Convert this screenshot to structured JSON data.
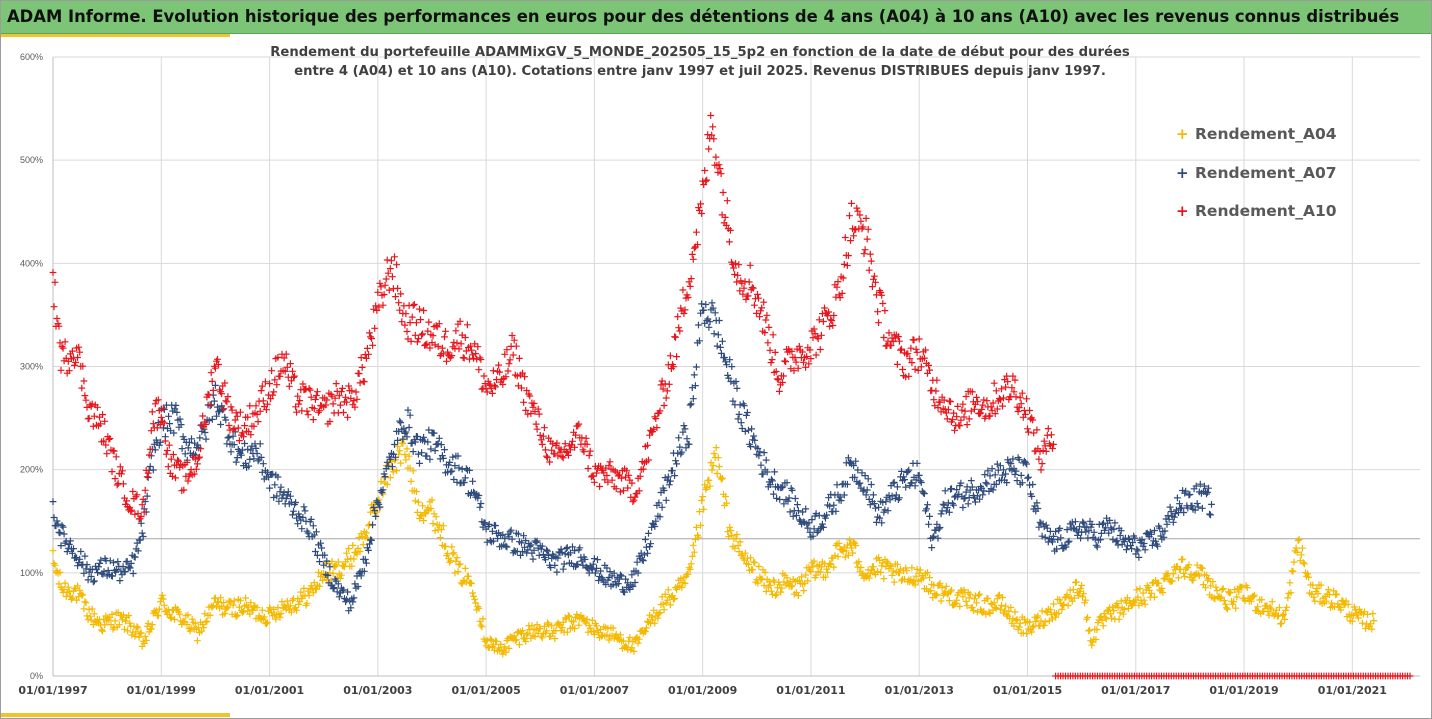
{
  "banner": {
    "title": "ADAM Informe. Evolution historique des performances en euros pour des détentions de 4 ans (A04) à 10 ans (A10) avec les revenus connus distribués"
  },
  "chart_data": {
    "type": "scatter",
    "title": "Rendement du portefeuille ADAMMixGV_5_MONDE_202505_15_5p2 en fonction de la date de début pour des durées",
    "subtitle": "entre 4 (A04) et 10 ans (A10). Cotations entre janv 1997 et juil 2025. Revenus DISTRIBUES depuis janv 1997.",
    "xlabel": "",
    "ylabel": "",
    "x_axis": "date of start of holding period",
    "xlim": [
      "1997-01-01",
      "2022-04-01"
    ],
    "ylim": [
      0,
      6
    ],
    "y_ticks": [
      "0%",
      "100%",
      "200%",
      "300%",
      "400%",
      "500%",
      "600%"
    ],
    "x_ticks": [
      "01/01/1997",
      "01/01/1999",
      "01/01/2001",
      "01/01/2003",
      "01/01/2005",
      "01/01/2007",
      "01/01/2009",
      "01/01/2011",
      "01/01/2013",
      "01/01/2015",
      "01/01/2017",
      "01/01/2019",
      "01/01/2021"
    ],
    "grid": true,
    "legend_position": "right",
    "colors": {
      "A04": "#f5b900",
      "A07": "#2f4b7c",
      "A10": "#e8161c",
      "grid": "#d9d9d9",
      "refline": "#a6a6a6"
    },
    "reference_line": 1.33,
    "series": [
      {
        "name": "Rendement_A04",
        "color": "#f5b900",
        "end": "2021-06-01",
        "points": [
          [
            "1997-01-01",
            1.12
          ],
          [
            "1997-03-01",
            0.85
          ],
          [
            "1997-06-01",
            0.82
          ],
          [
            "1997-09-01",
            0.6
          ],
          [
            "1997-12-01",
            0.5
          ],
          [
            "1998-03-01",
            0.55
          ],
          [
            "1998-06-01",
            0.5
          ],
          [
            "1998-09-01",
            0.32
          ],
          [
            "1998-11-01",
            0.52
          ],
          [
            "1999-01-01",
            0.72
          ],
          [
            "1999-03-01",
            0.62
          ],
          [
            "1999-06-01",
            0.55
          ],
          [
            "1999-09-01",
            0.42
          ],
          [
            "2000-01-01",
            0.7
          ],
          [
            "2000-04-01",
            0.65
          ],
          [
            "2000-07-01",
            0.68
          ],
          [
            "2000-10-01",
            0.62
          ],
          [
            "2001-01-01",
            0.58
          ],
          [
            "2001-04-01",
            0.68
          ],
          [
            "2001-07-01",
            0.72
          ],
          [
            "2001-10-01",
            0.8
          ],
          [
            "2002-01-01",
            1.0
          ],
          [
            "2002-04-01",
            1.02
          ],
          [
            "2002-07-01",
            1.15
          ],
          [
            "2002-10-01",
            1.35
          ],
          [
            "2003-01-01",
            1.7
          ],
          [
            "2003-04-01",
            2.05
          ],
          [
            "2003-07-01",
            2.2
          ],
          [
            "2003-10-01",
            1.65
          ],
          [
            "2004-01-01",
            1.6
          ],
          [
            "2004-04-01",
            1.3
          ],
          [
            "2004-07-01",
            1.0
          ],
          [
            "2004-10-01",
            0.9
          ],
          [
            "2005-01-01",
            0.35
          ],
          [
            "2005-04-01",
            0.25
          ],
          [
            "2005-07-01",
            0.35
          ],
          [
            "2005-10-01",
            0.42
          ],
          [
            "2006-01-01",
            0.45
          ],
          [
            "2006-04-01",
            0.42
          ],
          [
            "2006-07-01",
            0.5
          ],
          [
            "2006-10-01",
            0.55
          ],
          [
            "2007-01-01",
            0.45
          ],
          [
            "2007-04-01",
            0.42
          ],
          [
            "2007-07-01",
            0.35
          ],
          [
            "2007-10-01",
            0.28
          ],
          [
            "2008-01-01",
            0.5
          ],
          [
            "2008-04-01",
            0.7
          ],
          [
            "2008-07-01",
            0.8
          ],
          [
            "2008-10-01",
            0.95
          ],
          [
            "2009-01-01",
            1.65
          ],
          [
            "2009-04-01",
            2.15
          ],
          [
            "2009-07-01",
            1.4
          ],
          [
            "2009-10-01",
            1.15
          ],
          [
            "2010-01-01",
            1.0
          ],
          [
            "2010-04-01",
            0.85
          ],
          [
            "2010-07-01",
            0.9
          ],
          [
            "2010-10-01",
            0.85
          ],
          [
            "2011-01-01",
            1.0
          ],
          [
            "2011-04-01",
            1.05
          ],
          [
            "2011-07-01",
            1.2
          ],
          [
            "2011-10-01",
            1.25
          ],
          [
            "2012-01-01",
            1.0
          ],
          [
            "2012-04-01",
            1.05
          ],
          [
            "2012-07-01",
            1.0
          ],
          [
            "2012-10-01",
            0.95
          ],
          [
            "2013-01-01",
            1.0
          ],
          [
            "2013-04-01",
            0.85
          ],
          [
            "2013-07-01",
            0.8
          ],
          [
            "2013-10-01",
            0.75
          ],
          [
            "2014-01-01",
            0.72
          ],
          [
            "2014-04-01",
            0.68
          ],
          [
            "2014-07-01",
            0.7
          ],
          [
            "2014-10-01",
            0.55
          ],
          [
            "2015-01-01",
            0.45
          ],
          [
            "2015-04-01",
            0.55
          ],
          [
            "2015-07-01",
            0.65
          ],
          [
            "2015-10-01",
            0.75
          ],
          [
            "2016-01-01",
            0.9
          ],
          [
            "2016-03-01",
            0.35
          ],
          [
            "2016-06-01",
            0.55
          ],
          [
            "2016-10-01",
            0.65
          ],
          [
            "2017-01-01",
            0.75
          ],
          [
            "2017-04-01",
            0.8
          ],
          [
            "2017-07-01",
            0.9
          ],
          [
            "2017-10-01",
            1.05
          ],
          [
            "2018-01-01",
            1.05
          ],
          [
            "2018-04-01",
            0.95
          ],
          [
            "2018-07-01",
            0.8
          ],
          [
            "2018-10-01",
            0.72
          ],
          [
            "2019-01-01",
            0.8
          ],
          [
            "2019-04-01",
            0.7
          ],
          [
            "2019-07-01",
            0.65
          ],
          [
            "2019-10-01",
            0.55
          ],
          [
            "2020-01-01",
            1.3
          ],
          [
            "2020-04-01",
            0.8
          ],
          [
            "2020-07-01",
            0.78
          ],
          [
            "2020-10-01",
            0.72
          ],
          [
            "2021-01-01",
            0.6
          ],
          [
            "2021-03-01",
            0.55
          ],
          [
            "2021-06-01",
            0.52
          ]
        ]
      },
      {
        "name": "Rendement_A07",
        "color": "#2f4b7c",
        "end": "2018-06-01",
        "points": [
          [
            "1997-01-01",
            1.62
          ],
          [
            "1997-03-01",
            1.35
          ],
          [
            "1997-06-01",
            1.2
          ],
          [
            "1997-09-01",
            1.0
          ],
          [
            "1998-01-01",
            1.05
          ],
          [
            "1998-05-01",
            1.0
          ],
          [
            "1998-07-01",
            1.1
          ],
          [
            "1998-09-01",
            1.45
          ],
          [
            "1998-11-01",
            2.1
          ],
          [
            "1999-01-01",
            2.45
          ],
          [
            "1999-04-01",
            2.5
          ],
          [
            "1999-07-01",
            2.2
          ],
          [
            "1999-10-01",
            2.3
          ],
          [
            "2000-01-01",
            2.7
          ],
          [
            "2000-04-01",
            2.35
          ],
          [
            "2000-07-01",
            2.1
          ],
          [
            "2000-10-01",
            2.2
          ],
          [
            "2001-01-01",
            1.9
          ],
          [
            "2001-04-01",
            1.75
          ],
          [
            "2001-07-01",
            1.6
          ],
          [
            "2001-10-01",
            1.45
          ],
          [
            "2002-01-01",
            1.1
          ],
          [
            "2002-04-01",
            0.85
          ],
          [
            "2002-07-01",
            0.7
          ],
          [
            "2002-10-01",
            1.1
          ],
          [
            "2003-01-01",
            1.7
          ],
          [
            "2003-04-01",
            2.1
          ],
          [
            "2003-07-01",
            2.5
          ],
          [
            "2003-10-01",
            2.2
          ],
          [
            "2004-01-01",
            2.25
          ],
          [
            "2004-04-01",
            2.1
          ],
          [
            "2004-07-01",
            2.0
          ],
          [
            "2004-10-01",
            1.85
          ],
          [
            "2005-01-01",
            1.4
          ],
          [
            "2005-04-01",
            1.35
          ],
          [
            "2005-07-01",
            1.3
          ],
          [
            "2005-10-01",
            1.25
          ],
          [
            "2006-01-01",
            1.2
          ],
          [
            "2006-04-01",
            1.1
          ],
          [
            "2006-07-01",
            1.15
          ],
          [
            "2006-10-01",
            1.18
          ],
          [
            "2007-01-01",
            1.05
          ],
          [
            "2007-04-01",
            0.95
          ],
          [
            "2007-07-01",
            0.9
          ],
          [
            "2007-10-01",
            0.95
          ],
          [
            "2008-01-01",
            1.3
          ],
          [
            "2008-04-01",
            1.7
          ],
          [
            "2008-07-01",
            2.1
          ],
          [
            "2008-10-01",
            2.4
          ],
          [
            "2009-01-01",
            3.6
          ],
          [
            "2009-04-01",
            3.4
          ],
          [
            "2009-07-01",
            2.9
          ],
          [
            "2009-10-01",
            2.5
          ],
          [
            "2010-01-01",
            2.2
          ],
          [
            "2010-04-01",
            1.9
          ],
          [
            "2010-07-01",
            1.8
          ],
          [
            "2010-10-01",
            1.6
          ],
          [
            "2011-01-01",
            1.45
          ],
          [
            "2011-04-01",
            1.55
          ],
          [
            "2011-07-01",
            1.75
          ],
          [
            "2011-10-01",
            2.05
          ],
          [
            "2012-01-01",
            1.9
          ],
          [
            "2012-04-01",
            1.55
          ],
          [
            "2012-07-01",
            1.75
          ],
          [
            "2012-10-01",
            1.9
          ],
          [
            "2013-01-01",
            1.95
          ],
          [
            "2013-04-01",
            1.3
          ],
          [
            "2013-07-01",
            1.7
          ],
          [
            "2013-10-01",
            1.75
          ],
          [
            "2014-01-01",
            1.8
          ],
          [
            "2014-04-01",
            1.9
          ],
          [
            "2014-07-01",
            1.95
          ],
          [
            "2014-10-01",
            2.0
          ],
          [
            "2015-01-01",
            1.95
          ],
          [
            "2015-04-01",
            1.4
          ],
          [
            "2015-07-01",
            1.3
          ],
          [
            "2015-10-01",
            1.35
          ],
          [
            "2016-01-01",
            1.45
          ],
          [
            "2016-04-01",
            1.35
          ],
          [
            "2016-07-01",
            1.45
          ],
          [
            "2016-10-01",
            1.3
          ],
          [
            "2017-01-01",
            1.25
          ],
          [
            "2017-04-01",
            1.28
          ],
          [
            "2017-07-01",
            1.4
          ],
          [
            "2017-10-01",
            1.65
          ],
          [
            "2018-01-01",
            1.7
          ],
          [
            "2018-04-01",
            1.75
          ],
          [
            "2018-06-01",
            1.65
          ]
        ]
      },
      {
        "name": "Rendement_A10",
        "color": "#e8161c",
        "end": "2015-07-01",
        "after_end": 0,
        "points": [
          [
            "1997-01-01",
            3.8
          ],
          [
            "1997-03-01",
            3.05
          ],
          [
            "1997-06-01",
            3.2
          ],
          [
            "1997-09-01",
            2.6
          ],
          [
            "1997-12-01",
            2.4
          ],
          [
            "1998-03-01",
            2.0
          ],
          [
            "1998-06-01",
            1.7
          ],
          [
            "1998-09-01",
            1.6
          ],
          [
            "1998-11-01",
            2.5
          ],
          [
            "1999-01-01",
            2.6
          ],
          [
            "1999-03-01",
            2.05
          ],
          [
            "1999-06-01",
            1.9
          ],
          [
            "1999-09-01",
            2.1
          ],
          [
            "2000-01-01",
            3.05
          ],
          [
            "2000-04-01",
            2.55
          ],
          [
            "2000-07-01",
            2.4
          ],
          [
            "2000-10-01",
            2.55
          ],
          [
            "2001-01-01",
            2.8
          ],
          [
            "2001-04-01",
            3.05
          ],
          [
            "2001-07-01",
            2.7
          ],
          [
            "2001-10-01",
            2.65
          ],
          [
            "2002-01-01",
            2.55
          ],
          [
            "2002-04-01",
            2.7
          ],
          [
            "2002-07-01",
            2.65
          ],
          [
            "2002-10-01",
            3.0
          ],
          [
            "2003-01-01",
            3.55
          ],
          [
            "2003-04-01",
            4.0
          ],
          [
            "2003-07-01",
            3.45
          ],
          [
            "2003-10-01",
            3.4
          ],
          [
            "2004-01-01",
            3.3
          ],
          [
            "2004-04-01",
            3.2
          ],
          [
            "2004-07-01",
            3.3
          ],
          [
            "2004-10-01",
            3.2
          ],
          [
            "2005-01-01",
            2.8
          ],
          [
            "2005-04-01",
            2.85
          ],
          [
            "2005-07-01",
            3.15
          ],
          [
            "2005-10-01",
            2.7
          ],
          [
            "2006-01-01",
            2.4
          ],
          [
            "2006-04-01",
            2.1
          ],
          [
            "2006-07-01",
            2.2
          ],
          [
            "2006-10-01",
            2.35
          ],
          [
            "2007-01-01",
            1.95
          ],
          [
            "2007-04-01",
            1.95
          ],
          [
            "2007-07-01",
            1.9
          ],
          [
            "2007-10-01",
            1.8
          ],
          [
            "2008-01-01",
            2.2
          ],
          [
            "2008-04-01",
            2.7
          ],
          [
            "2008-07-01",
            3.2
          ],
          [
            "2008-10-01",
            3.9
          ],
          [
            "2009-01-01",
            4.6
          ],
          [
            "2009-03-01",
            5.4
          ],
          [
            "2009-06-01",
            4.5
          ],
          [
            "2009-09-01",
            3.9
          ],
          [
            "2009-12-01",
            3.8
          ],
          [
            "2010-03-01",
            3.4
          ],
          [
            "2010-06-01",
            2.9
          ],
          [
            "2010-09-01",
            3.1
          ],
          [
            "2011-01-01",
            3.2
          ],
          [
            "2011-04-01",
            3.4
          ],
          [
            "2011-07-01",
            3.7
          ],
          [
            "2011-10-01",
            4.4
          ],
          [
            "2012-01-01",
            4.3
          ],
          [
            "2012-04-01",
            3.6
          ],
          [
            "2012-07-01",
            3.2
          ],
          [
            "2012-10-01",
            3.05
          ],
          [
            "2013-01-01",
            3.15
          ],
          [
            "2013-04-01",
            2.8
          ],
          [
            "2013-07-01",
            2.65
          ],
          [
            "2013-10-01",
            2.45
          ],
          [
            "2014-01-01",
            2.7
          ],
          [
            "2014-04-01",
            2.6
          ],
          [
            "2014-07-01",
            2.75
          ],
          [
            "2014-10-01",
            2.8
          ],
          [
            "2015-01-01",
            2.55
          ],
          [
            "2015-04-01",
            2.1
          ],
          [
            "2015-07-01",
            2.4
          ]
        ]
      }
    ]
  }
}
